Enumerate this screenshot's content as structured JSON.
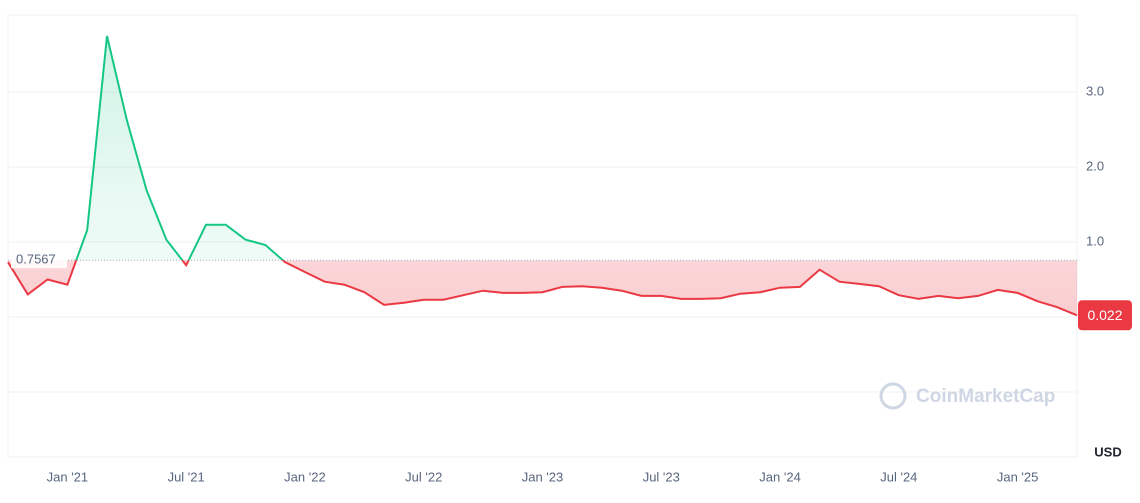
{
  "chart_data": {
    "type": "line",
    "x": [
      "2020-10",
      "2020-11",
      "2020-12",
      "2021-01",
      "2021-02",
      "2021-03",
      "2021-04",
      "2021-05",
      "2021-06",
      "2021-07",
      "2021-08",
      "2021-09",
      "2021-10",
      "2021-11",
      "2021-12",
      "2022-01",
      "2022-02",
      "2022-03",
      "2022-04",
      "2022-05",
      "2022-06",
      "2022-07",
      "2022-08",
      "2022-09",
      "2022-10",
      "2022-11",
      "2022-12",
      "2023-01",
      "2023-02",
      "2023-03",
      "2023-04",
      "2023-05",
      "2023-06",
      "2023-07",
      "2023-08",
      "2023-09",
      "2023-10",
      "2023-11",
      "2023-12",
      "2024-01",
      "2024-02",
      "2024-03",
      "2024-04",
      "2024-05",
      "2024-06",
      "2024-07",
      "2024-08",
      "2024-09",
      "2024-10",
      "2024-11",
      "2024-12",
      "2025-01",
      "2025-02",
      "2025-03",
      "2025-04"
    ],
    "series": [
      {
        "values": [
          0.73,
          0.3,
          0.5,
          0.43,
          1.16,
          3.75,
          2.63,
          1.69,
          1.03,
          0.69,
          1.23,
          1.23,
          1.03,
          0.96,
          0.73,
          0.6,
          0.47,
          0.43,
          0.33,
          0.16,
          0.19,
          0.23,
          0.23,
          0.29,
          0.35,
          0.32,
          0.32,
          0.33,
          0.4,
          0.41,
          0.39,
          0.35,
          0.28,
          0.28,
          0.24,
          0.24,
          0.25,
          0.31,
          0.33,
          0.39,
          0.4,
          0.63,
          0.47,
          0.44,
          0.41,
          0.29,
          0.24,
          0.28,
          0.25,
          0.28,
          0.36,
          0.32,
          0.21,
          0.13,
          0.022
        ]
      }
    ],
    "baseline": 0.7567,
    "up_color": "#16c784",
    "down_color": "#ea3943",
    "xlim": [
      "2020-10",
      "2025-04"
    ],
    "xticks": [
      {
        "value": "2021-01",
        "label": "Jan '21"
      },
      {
        "value": "2021-07",
        "label": "Jul '21"
      },
      {
        "value": "2022-01",
        "label": "Jan '22"
      },
      {
        "value": "2022-07",
        "label": "Jul '22"
      },
      {
        "value": "2023-01",
        "label": "Jan '23"
      },
      {
        "value": "2023-07",
        "label": "Jul '23"
      },
      {
        "value": "2024-01",
        "label": "Jan '24"
      },
      {
        "value": "2024-07",
        "label": "Jul '24"
      },
      {
        "value": "2025-01",
        "label": "Jan '25"
      }
    ],
    "ylim": [
      -1.87,
      4.03
    ],
    "yticks": [
      {
        "value": 1,
        "label": "1.0"
      },
      {
        "value": 2,
        "label": "2.0"
      },
      {
        "value": 3,
        "label": "3.0"
      }
    ],
    "grid": true,
    "y_label": "USD",
    "watermark": "CoinMarketCap"
  }
}
